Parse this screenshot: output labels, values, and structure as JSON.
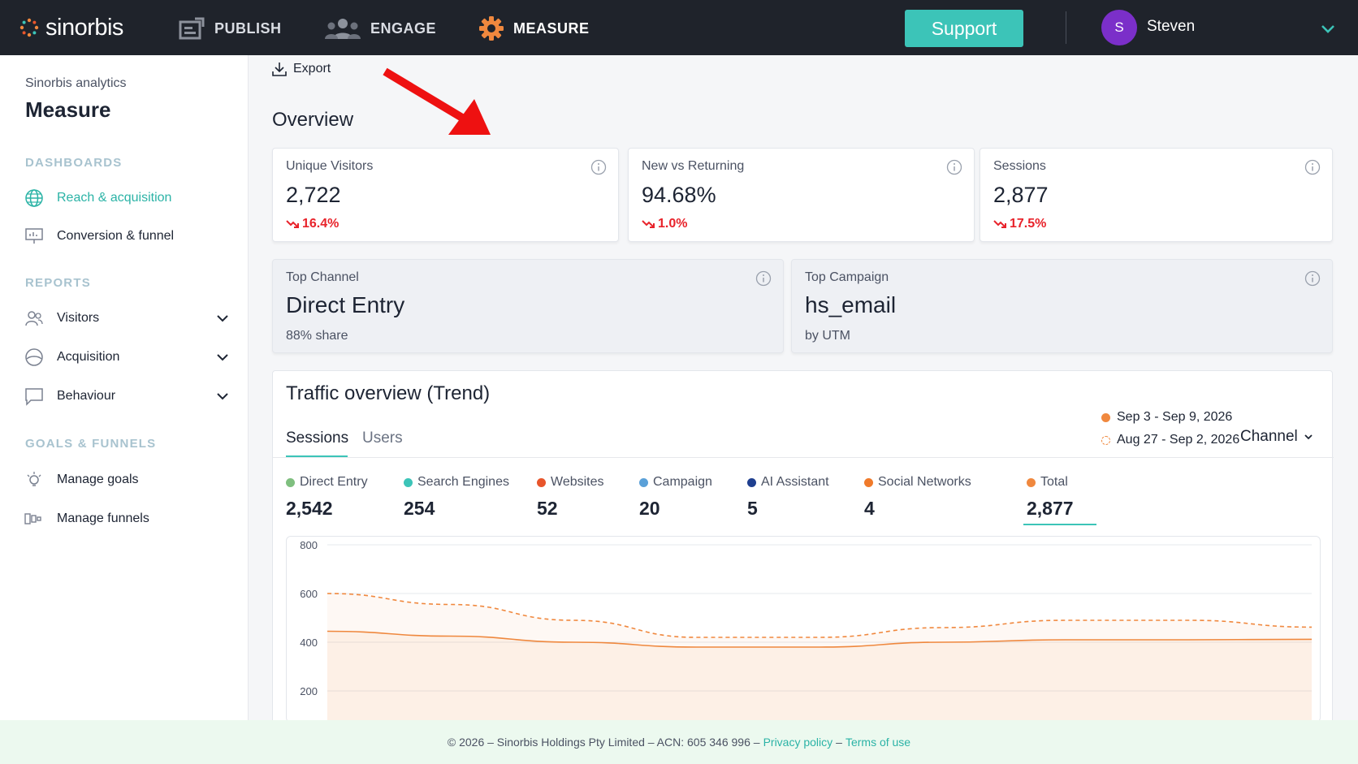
{
  "topbar": {
    "brand": "sinorbis",
    "nav": [
      {
        "label": "PUBLISH",
        "icon": "publish-icon"
      },
      {
        "label": "ENGAGE",
        "icon": "people-icon"
      },
      {
        "label": "MEASURE",
        "icon": "gear-icon"
      }
    ],
    "support_label": "Support",
    "user": {
      "initial": "S",
      "name": "Steven",
      "avatar_color": "#7b2fc9"
    },
    "accent": "#3cc4b8"
  },
  "sidebar": {
    "subtitle": "Sinorbis analytics",
    "title": "Measure",
    "sections": {
      "dashboards": "DASHBOARDS",
      "reports": "REPORTS",
      "goals": "GOALS & FUNNELS"
    },
    "dashboards": [
      {
        "label": "Reach & acquisition",
        "icon": "globe-icon",
        "active": true
      },
      {
        "label": "Conversion & funnel",
        "icon": "presentation-icon",
        "active": false
      }
    ],
    "reports": [
      {
        "label": "Visitors",
        "icon": "users-icon"
      },
      {
        "label": "Acquisition",
        "icon": "half-circle-icon"
      },
      {
        "label": "Behaviour",
        "icon": "chat-icon"
      }
    ],
    "goals": [
      {
        "label": "Manage goals",
        "icon": "bulb-icon"
      },
      {
        "label": "Manage funnels",
        "icon": "funnel-icon"
      }
    ]
  },
  "main": {
    "export_label": "Export",
    "overview_title": "Overview",
    "kpis": [
      {
        "label": "Unique Visitors",
        "value": "2,722",
        "delta": "16.4%"
      },
      {
        "label": "New vs Returning",
        "value": "94.68%",
        "delta": "1.0%"
      },
      {
        "label": "Sessions",
        "value": "2,877",
        "delta": "17.5%"
      }
    ],
    "highlights": [
      {
        "label": "Top Channel",
        "value": "Direct Entry",
        "sub": "88% share"
      },
      {
        "label": "Top Campaign",
        "value": "hs_email",
        "sub": "by UTM"
      }
    ],
    "trend": {
      "title": "Traffic overview (Trend)",
      "tabs": [
        "Sessions",
        "Users"
      ],
      "range_current": "Sep 3 - Sep 9, 2026",
      "range_previous": "Aug 27 - Sep 2, 2026",
      "channel_label": "Channel",
      "metrics": [
        {
          "label": "Direct Entry",
          "value": "2,542",
          "color": "#7fbf7f"
        },
        {
          "label": "Search Engines",
          "value": "254",
          "color": "#3cc4b8"
        },
        {
          "label": "Websites",
          "value": "52",
          "color": "#e8552b"
        },
        {
          "label": "Campaign",
          "value": "20",
          "color": "#5aa0d8"
        },
        {
          "label": "AI Assistant",
          "value": "5",
          "color": "#1f3f8f"
        },
        {
          "label": "Social Networks",
          "value": "4",
          "color": "#f07a2a"
        },
        {
          "label": "Total",
          "value": "2,877",
          "color": "#f0883e"
        }
      ]
    }
  },
  "chart_data": {
    "type": "area",
    "title": "",
    "xlabel": "",
    "ylabel": "",
    "y_ticks": [
      "800",
      "600",
      "400",
      "200"
    ],
    "ylim": [
      150,
      800
    ],
    "grid": true,
    "series": [
      {
        "name": "Sep 3 - Sep 9, 2026",
        "style": "solid",
        "color": "#f0883e",
        "values": [
          445,
          425,
          400,
          380,
          380,
          400,
          410,
          410,
          412
        ]
      },
      {
        "name": "Aug 27 - Sep 2, 2026",
        "style": "dashed",
        "color": "#f0883e",
        "values": [
          600,
          555,
          490,
          420,
          420,
          460,
          490,
          490,
          462
        ]
      }
    ]
  },
  "footer": {
    "copyright": "© 2026 – Sinorbis Holdings Pty Limited – ACN: 605 346 996 –",
    "privacy": "Privacy policy",
    "sep": "–",
    "terms": "Terms of use"
  }
}
